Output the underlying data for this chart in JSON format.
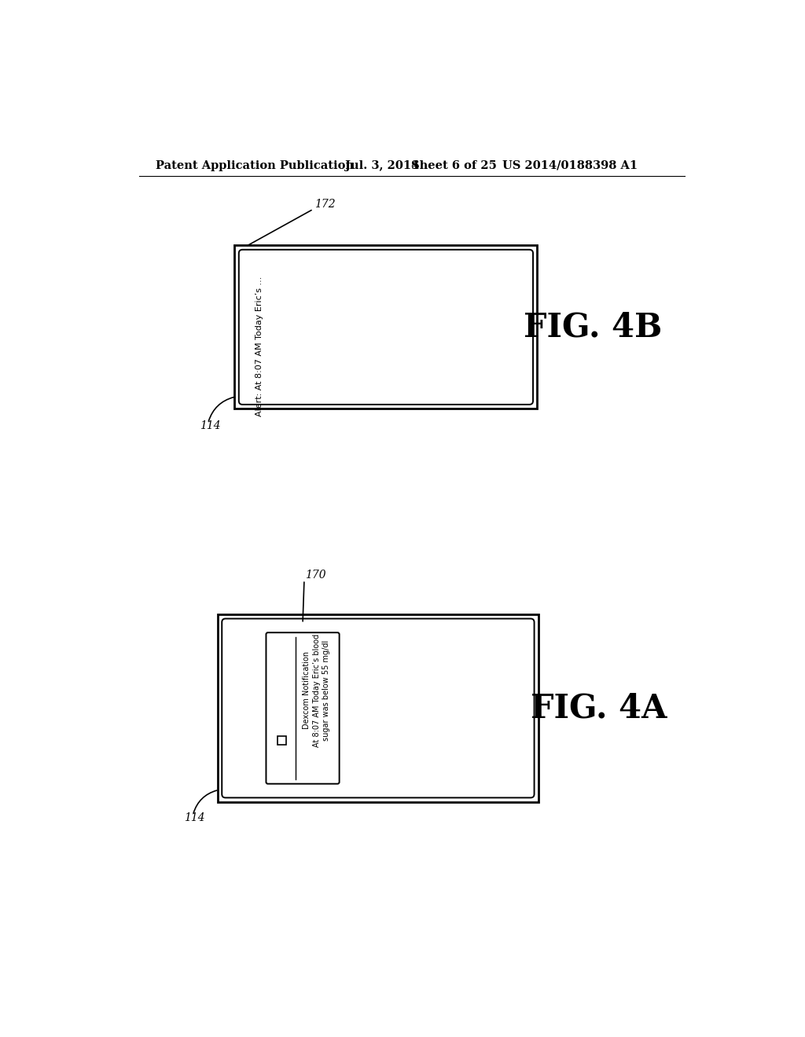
{
  "background_color": "#ffffff",
  "header_text": "Patent Application Publication",
  "header_date": "Jul. 3, 2014",
  "header_sheet": "Sheet 6 of 25",
  "header_patent": "US 2014/0188398 A1",
  "fig_top_label": "FIG. 4B",
  "fig_bottom_label": "FIG. 4A",
  "top_ref_172": "172",
  "top_ref_114": "114",
  "bottom_ref_170": "170",
  "bottom_ref_114b": "114",
  "top_alert_text": "Alert: At 8:07 AM Today Eric’s ...",
  "bottom_notif_title": "Dexcom Notification",
  "bottom_notif_body": "At 8:07 AM Today Eric’s blood\nsugar was below 55 mg/dl"
}
